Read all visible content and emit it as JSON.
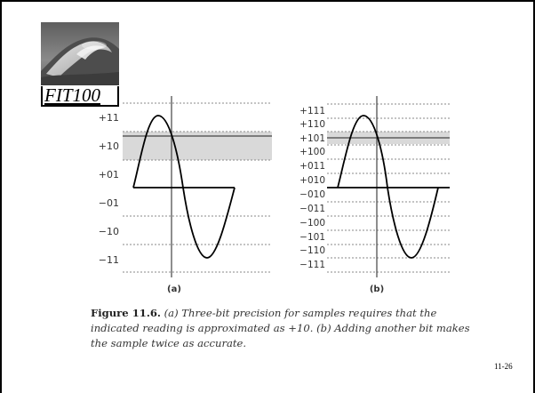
{
  "slide": {
    "logo_text": "FIT100",
    "page_number": "11-26"
  },
  "figure": {
    "panel_a": {
      "label": "(a)",
      "y_labels": [
        "+11",
        "+10",
        "+01",
        "−01",
        "−10",
        "−11"
      ],
      "indicated_reading": "+10"
    },
    "panel_b": {
      "label": "(b)",
      "y_labels": [
        "+111",
        "+110",
        "+101",
        "+100",
        "+011",
        "+010",
        "−010",
        "−011",
        "−100",
        "−101",
        "−110",
        "−111"
      ],
      "indicated_reading": "+101"
    },
    "caption_label": "Figure 11.6.",
    "caption_text": " (a) Three-bit precision for samples requires that the indicated reading is approximated as +10. (b) Adding another bit makes the sample twice as accurate."
  },
  "colors": {
    "band_fill": "#d9d9d9",
    "text": "#333333",
    "frame": "#000000"
  },
  "icons": {
    "logo": "wave-photo-icon"
  }
}
